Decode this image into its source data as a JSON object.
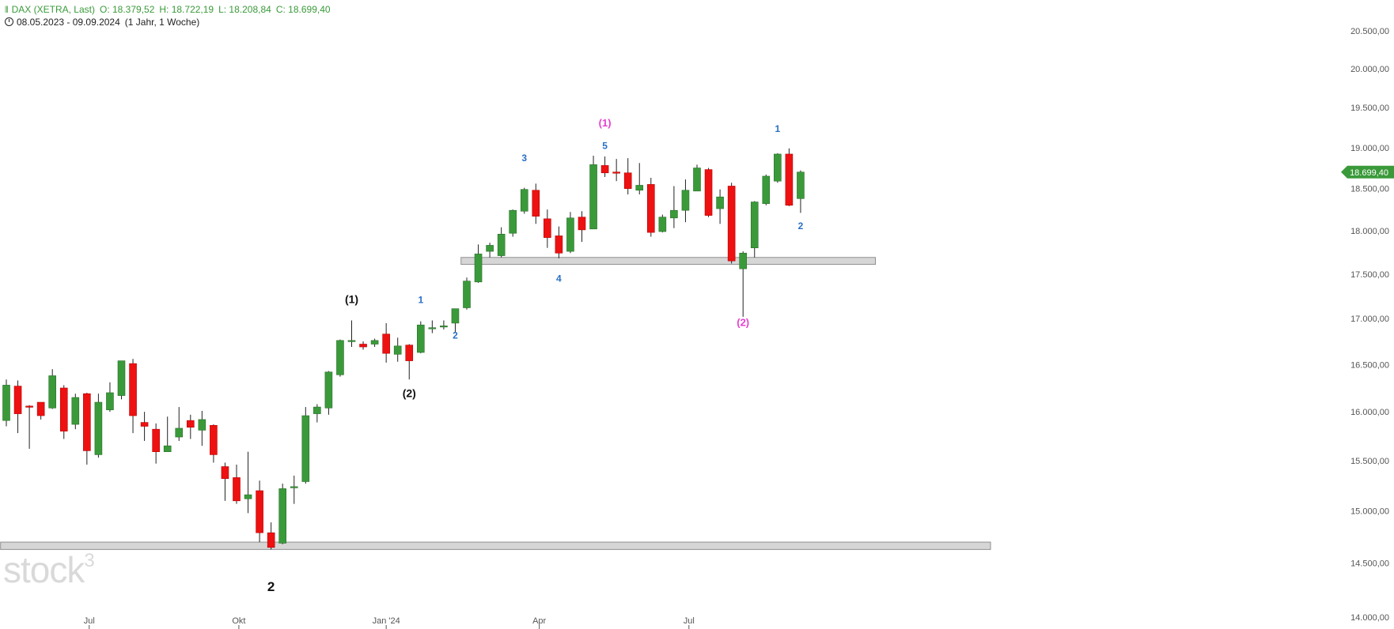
{
  "header": {
    "instrument": "DAX (XETRA, Last)",
    "open": "O: 18.379,52",
    "high": "H: 18.722,19",
    "low": "L: 18.208,84",
    "close": "C: 18.699,40",
    "range": "08.05.2023 - 09.09.2024",
    "period": "(1 Jahr, 1 Woche)"
  },
  "watermark": {
    "text": "stock",
    "sup": "3"
  },
  "colors": {
    "up": "#3a9a3a",
    "down": "#ee1111",
    "price_tag": "#3a9a3a",
    "zone": "#d6d6d6"
  },
  "chart_data": {
    "type": "candlestick",
    "y_scale": "log",
    "ylim": [
      14000,
      20700
    ],
    "y_ticks": [
      {
        "value": 14000,
        "label": "14.000,00"
      },
      {
        "value": 14500,
        "label": "14.500,00"
      },
      {
        "value": 15000,
        "label": "15.000,00"
      },
      {
        "value": 15500,
        "label": "15.500,00"
      },
      {
        "value": 16000,
        "label": "16.000,00"
      },
      {
        "value": 16500,
        "label": "16.500,00"
      },
      {
        "value": 17000,
        "label": "17.000,00"
      },
      {
        "value": 17500,
        "label": "17.500,00"
      },
      {
        "value": 18000,
        "label": "18.000,00"
      },
      {
        "value": 18500,
        "label": "18.500,00"
      },
      {
        "value": 19000,
        "label": "19.000,00"
      },
      {
        "value": 19500,
        "label": "19.500,00"
      },
      {
        "value": 20000,
        "label": "20.000,00"
      },
      {
        "value": 20500,
        "label": "20.500,00"
      }
    ],
    "x_ticks": [
      {
        "week": 7.2,
        "label": "Jul"
      },
      {
        "week": 20.2,
        "label": "Okt"
      },
      {
        "week": 33.0,
        "label": "Jan '24"
      },
      {
        "week": 46.3,
        "label": "Apr"
      },
      {
        "week": 59.3,
        "label": "Jul"
      }
    ],
    "candles": [
      {
        "o": 15910,
        "h": 16340,
        "l": 15850,
        "c": 16280
      },
      {
        "o": 16270,
        "h": 16330,
        "l": 15780,
        "c": 15980
      },
      {
        "o": 16060,
        "h": 16070,
        "l": 15620,
        "c": 16050
      },
      {
        "o": 16100,
        "h": 16100,
        "l": 15920,
        "c": 15960
      },
      {
        "o": 16040,
        "h": 16450,
        "l": 16030,
        "c": 16380
      },
      {
        "o": 16250,
        "h": 16280,
        "l": 15720,
        "c": 15800
      },
      {
        "o": 15870,
        "h": 16190,
        "l": 15820,
        "c": 16150
      },
      {
        "o": 16190,
        "h": 16200,
        "l": 15460,
        "c": 15600
      },
      {
        "o": 15560,
        "h": 16190,
        "l": 15530,
        "c": 16100
      },
      {
        "o": 16020,
        "h": 16310,
        "l": 16000,
        "c": 16200
      },
      {
        "o": 16170,
        "h": 16540,
        "l": 16130,
        "c": 16540
      },
      {
        "o": 16510,
        "h": 16560,
        "l": 15780,
        "c": 15960
      },
      {
        "o": 15890,
        "h": 16000,
        "l": 15700,
        "c": 15850
      },
      {
        "o": 15820,
        "h": 15880,
        "l": 15470,
        "c": 15590
      },
      {
        "o": 15590,
        "h": 15950,
        "l": 15600,
        "c": 15650
      },
      {
        "o": 15740,
        "h": 16050,
        "l": 15700,
        "c": 15830
      },
      {
        "o": 15910,
        "h": 15970,
        "l": 15720,
        "c": 15840
      },
      {
        "o": 15810,
        "h": 16010,
        "l": 15650,
        "c": 15920
      },
      {
        "o": 15860,
        "h": 15870,
        "l": 15480,
        "c": 15560
      },
      {
        "o": 15440,
        "h": 15480,
        "l": 15100,
        "c": 15320
      },
      {
        "o": 15330,
        "h": 15460,
        "l": 15070,
        "c": 15100
      },
      {
        "o": 15120,
        "h": 15590,
        "l": 14980,
        "c": 15160
      },
      {
        "o": 15200,
        "h": 15300,
        "l": 14700,
        "c": 14790
      },
      {
        "o": 14790,
        "h": 14890,
        "l": 14630,
        "c": 14650
      },
      {
        "o": 14690,
        "h": 15270,
        "l": 14680,
        "c": 15220
      },
      {
        "o": 15240,
        "h": 15350,
        "l": 15070,
        "c": 15240
      },
      {
        "o": 15290,
        "h": 16050,
        "l": 15270,
        "c": 15960
      },
      {
        "o": 15980,
        "h": 16080,
        "l": 15890,
        "c": 16050
      },
      {
        "o": 16040,
        "h": 16430,
        "l": 15970,
        "c": 16420
      },
      {
        "o": 16390,
        "h": 16770,
        "l": 16370,
        "c": 16760
      },
      {
        "o": 16750,
        "h": 16980,
        "l": 16690,
        "c": 16760
      },
      {
        "o": 16720,
        "h": 16750,
        "l": 16660,
        "c": 16690
      },
      {
        "o": 16720,
        "h": 16780,
        "l": 16690,
        "c": 16760
      },
      {
        "o": 16830,
        "h": 16950,
        "l": 16520,
        "c": 16620
      },
      {
        "o": 16610,
        "h": 16790,
        "l": 16530,
        "c": 16700
      },
      {
        "o": 16710,
        "h": 16720,
        "l": 16340,
        "c": 16540
      },
      {
        "o": 16630,
        "h": 16970,
        "l": 16620,
        "c": 16930
      },
      {
        "o": 16900,
        "h": 16980,
        "l": 16840,
        "c": 16900
      },
      {
        "o": 16910,
        "h": 16980,
        "l": 16880,
        "c": 16920
      },
      {
        "o": 16950,
        "h": 17110,
        "l": 16850,
        "c": 17110
      },
      {
        "o": 17120,
        "h": 17460,
        "l": 17100,
        "c": 17420
      },
      {
        "o": 17410,
        "h": 17840,
        "l": 17400,
        "c": 17730
      },
      {
        "o": 17760,
        "h": 17860,
        "l": 17690,
        "c": 17830
      },
      {
        "o": 17710,
        "h": 18040,
        "l": 17690,
        "c": 17960
      },
      {
        "o": 17970,
        "h": 18250,
        "l": 17930,
        "c": 18240
      },
      {
        "o": 18230,
        "h": 18510,
        "l": 18200,
        "c": 18490
      },
      {
        "o": 18480,
        "h": 18560,
        "l": 18080,
        "c": 18170
      },
      {
        "o": 18140,
        "h": 18250,
        "l": 17800,
        "c": 17920
      },
      {
        "o": 17940,
        "h": 18050,
        "l": 17680,
        "c": 17740
      },
      {
        "o": 17760,
        "h": 18220,
        "l": 17740,
        "c": 18150
      },
      {
        "o": 18160,
        "h": 18230,
        "l": 17870,
        "c": 18010
      },
      {
        "o": 18020,
        "h": 18900,
        "l": 18020,
        "c": 18790
      },
      {
        "o": 18780,
        "h": 18890,
        "l": 18640,
        "c": 18690
      },
      {
        "o": 18700,
        "h": 18860,
        "l": 18590,
        "c": 18690
      },
      {
        "o": 18690,
        "h": 18870,
        "l": 18430,
        "c": 18500
      },
      {
        "o": 18480,
        "h": 18810,
        "l": 18430,
        "c": 18540
      },
      {
        "o": 18550,
        "h": 18630,
        "l": 17930,
        "c": 17980
      },
      {
        "o": 17990,
        "h": 18190,
        "l": 17980,
        "c": 18160
      },
      {
        "o": 18150,
        "h": 18530,
        "l": 18030,
        "c": 18240
      },
      {
        "o": 18240,
        "h": 18610,
        "l": 18100,
        "c": 18480
      },
      {
        "o": 18470,
        "h": 18790,
        "l": 18470,
        "c": 18750
      },
      {
        "o": 18730,
        "h": 18750,
        "l": 18160,
        "c": 18180
      },
      {
        "o": 18260,
        "h": 18490,
        "l": 18080,
        "c": 18400
      },
      {
        "o": 18530,
        "h": 18570,
        "l": 17620,
        "c": 17650
      },
      {
        "o": 17560,
        "h": 17760,
        "l": 17020,
        "c": 17740
      },
      {
        "o": 17800,
        "h": 18350,
        "l": 17690,
        "c": 18340
      },
      {
        "o": 18320,
        "h": 18670,
        "l": 18300,
        "c": 18650
      },
      {
        "o": 18590,
        "h": 18930,
        "l": 18570,
        "c": 18920
      },
      {
        "o": 18920,
        "h": 18990,
        "l": 18290,
        "c": 18300
      },
      {
        "o": 18380,
        "h": 18720,
        "l": 18210,
        "c": 18700
      }
    ],
    "zones": [
      {
        "from_week": -0.5,
        "to_week": 85.5,
        "y_low": 14630,
        "y_high": 14700
      },
      {
        "from_week": 39.5,
        "to_week": 75.5,
        "y_low": 17610,
        "y_high": 17690
      }
    ],
    "last_price": {
      "value": 18699.4,
      "label": "18.699,40"
    },
    "annotations": [
      {
        "text": "2",
        "week": 23.0,
        "y_value": 14240,
        "color": "#111111",
        "size": 17
      },
      {
        "text": "(1)",
        "week": 30.0,
        "y_value": 17175,
        "color": "#111111",
        "size": 14
      },
      {
        "text": "(2)",
        "week": 35.0,
        "y_value": 16155,
        "color": "#111111",
        "size": 14
      },
      {
        "text": "1",
        "week": 36.0,
        "y_value": 17175,
        "color": "#2a6fc4",
        "size": 12
      },
      {
        "text": "2",
        "week": 39.0,
        "y_value": 16780,
        "color": "#2a6fc4",
        "size": 12
      },
      {
        "text": "3",
        "week": 45.0,
        "y_value": 18830,
        "color": "#2a6fc4",
        "size": 12
      },
      {
        "text": "4",
        "week": 48.0,
        "y_value": 17415,
        "color": "#2a6fc4",
        "size": 12
      },
      {
        "text": "(1)",
        "week": 52.0,
        "y_value": 19265,
        "color": "#e83fd0",
        "size": 13
      },
      {
        "text": "5",
        "week": 52.0,
        "y_value": 18985,
        "color": "#2a6fc4",
        "size": 12
      },
      {
        "text": "(2)",
        "week": 64.0,
        "y_value": 16920,
        "color": "#e83fd0",
        "size": 13
      },
      {
        "text": "1",
        "week": 67.0,
        "y_value": 19195,
        "color": "#2a6fc4",
        "size": 12
      },
      {
        "text": "2",
        "week": 69.0,
        "y_value": 18020,
        "color": "#2a6fc4",
        "size": 12
      }
    ]
  }
}
